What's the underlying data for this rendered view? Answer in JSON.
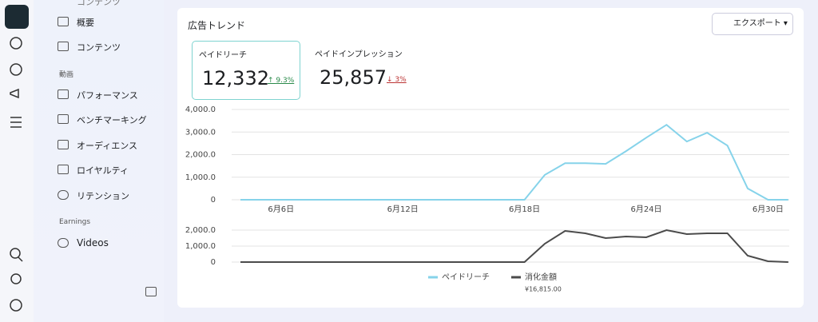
{
  "sidebar": {
    "cut_item": "コンテンツ",
    "items": [
      "概要",
      "コンテンツ"
    ],
    "video_section": "動画",
    "video_items": [
      "パフォーマンス",
      "ベンチマーキング",
      "オーディエンス",
      "ロイヤルティ",
      "リテンション"
    ],
    "earnings_section": "Earnings",
    "earnings_items": [
      "Videos"
    ]
  },
  "card": {
    "title": "広告トレンド",
    "export": "エクスポート",
    "metrics": [
      {
        "label": "ペイドリーチ",
        "value": "12,332",
        "change": "9.3%"
      },
      {
        "label": "ペイドインプレッション",
        "value": "25,857",
        "change": "3%"
      }
    ],
    "spend_total": "¥16,815.00"
  },
  "chart_data": [
    {
      "type": "line",
      "categories": [
        null,
        null,
        "6月6日",
        null,
        null,
        null,
        null,
        null,
        "6月12日",
        null,
        null,
        null,
        null,
        null,
        "6月18日",
        null,
        null,
        null,
        null,
        null,
        "6月24日",
        null,
        null,
        null,
        null,
        null,
        "6月30日",
        null
      ],
      "series": [
        {
          "name": "ペイドリーチ",
          "color": "#86d3ea",
          "values": [
            0,
            0,
            0,
            0,
            0,
            0,
            0,
            0,
            0,
            0,
            0,
            0,
            0,
            0,
            0,
            1100,
            1620,
            1620,
            1590,
            2150,
            2750,
            3320,
            2580,
            2970,
            2400,
            500,
            0,
            0
          ]
        }
      ],
      "ylim": [
        0,
        4000
      ],
      "yticks": [
        0,
        {
          "value": 1000,
          "label": "1,000.0"
        },
        {
          "value": 2000,
          "label": "2,000.0"
        },
        {
          "value": 3000,
          "label": "3,000.0"
        },
        {
          "value": 4000,
          "label": "4,000.0"
        }
      ],
      "grid": true
    },
    {
      "type": "line",
      "series": [
        {
          "name": "消化金額",
          "color": "#4b4b4b",
          "values": [
            0,
            0,
            0,
            0,
            0,
            0,
            0,
            0,
            0,
            0,
            0,
            0,
            0,
            0,
            0,
            1150,
            1950,
            1800,
            1500,
            1600,
            1550,
            2000,
            1750,
            1800,
            1800,
            400,
            50,
            0
          ]
        }
      ],
      "ylim": [
        0,
        2000
      ],
      "yticks": [
        0,
        {
          "value": 1000,
          "label": "1,000.0"
        },
        {
          "value": 2000,
          "label": "2,000.0"
        }
      ],
      "grid": true
    }
  ]
}
